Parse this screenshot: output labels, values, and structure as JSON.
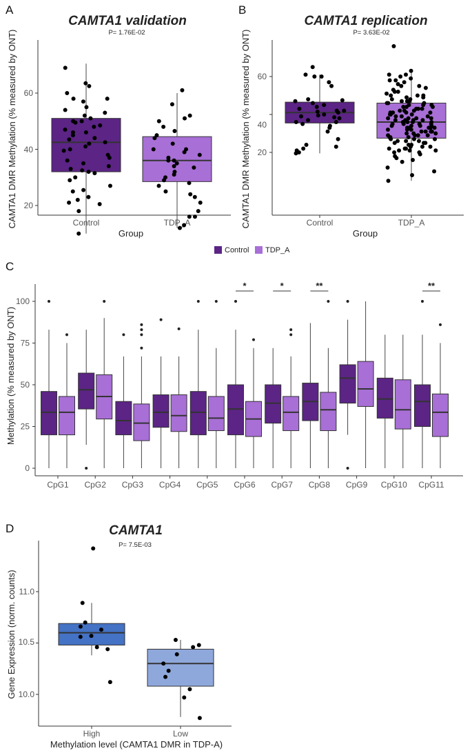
{
  "colors": {
    "control": "#5B2485",
    "tdp": "#A86FD6",
    "title_purple": "#A96BD6",
    "title_blue": "#8FA8DC",
    "high": "#4472C4",
    "low": "#8FA8DC"
  },
  "panels": {
    "A": {
      "letter": "A",
      "title": "CAMTA1 validation",
      "pval": "P= 1.76E-02",
      "ylabel": "CAMTA1 DMR Methylation (% measured by ONT)",
      "xlabel": "Group",
      "ylim": [
        8,
        72
      ],
      "yticks": [
        "20",
        "40",
        "60"
      ],
      "categories": [
        "Control",
        "TDP_A"
      ]
    },
    "B": {
      "letter": "B",
      "title": "CAMTA1 replication",
      "pval": "P= 3.63E-02",
      "ylabel": "CAMTA1 DMR Methylation (% measured by ONT)",
      "xlabel": "Group",
      "ylim": [
        3,
        77
      ],
      "yticks": [
        "20",
        "40",
        "60"
      ],
      "categories": [
        "Control",
        "TDP_A"
      ]
    },
    "C": {
      "letter": "C",
      "ylabel": "Methylation (% measured by ONT)",
      "ylim": [
        -3,
        110
      ],
      "yticks": [
        "0",
        "25",
        "50",
        "75",
        "100"
      ],
      "legend": [
        "Control",
        "TDP_A"
      ],
      "categories": [
        "CpG1",
        "CpG2",
        "CpG3",
        "CpG4",
        "CpG5",
        "CpG6",
        "CpG7",
        "CpG8",
        "CpG9",
        "CpG10",
        "CpG11"
      ],
      "stars": [
        "",
        "",
        "",
        "",
        "",
        "*",
        "*",
        "**",
        "",
        "",
        "**"
      ]
    },
    "D": {
      "letter": "D",
      "title": "CAMTA1",
      "pval": "P= 7.5E-03",
      "ylabel": "Gene Expression (norm. counts)",
      "xlabel": "Methylation level (CAMTA1 DMR in TDP-A)",
      "ylim": [
        9.75,
        11.45
      ],
      "yticks": [
        "10.0",
        "10.5",
        "11.0"
      ],
      "categories": [
        "High",
        "Low"
      ]
    }
  },
  "chart_data": [
    {
      "type": "box",
      "panel": "A",
      "title": "CAMTA1 validation",
      "xlabel": "Group",
      "ylabel": "CAMTA1 DMR Methylation (% measured by ONT)",
      "categories": [
        "Control",
        "TDP_A"
      ],
      "boxes": [
        {
          "min": 10,
          "q1": 32,
          "median": 42.5,
          "q3": 51,
          "max": 70.5
        },
        {
          "min": 12,
          "q1": 28.5,
          "median": 36,
          "q3": 44.5,
          "max": 60
        }
      ],
      "points": [
        [
          63.5,
          62.5,
          60,
          58,
          57,
          55,
          54,
          53,
          51,
          50,
          49.5,
          48.5,
          48,
          47,
          46,
          45,
          44,
          43.5,
          42,
          41,
          40,
          39.5,
          38,
          37,
          36,
          35,
          34,
          33,
          32.5,
          32,
          31.5,
          30,
          29,
          27,
          25.5,
          25,
          23,
          22,
          21,
          20.5,
          18,
          10,
          69,
          58,
          50,
          42.5,
          52,
          46
        ],
        [
          61,
          56,
          52,
          51,
          50,
          48,
          46.5,
          45,
          44,
          42,
          40,
          39,
          38,
          37,
          36,
          35,
          34,
          33.5,
          32,
          31,
          30,
          29,
          28,
          27,
          25,
          24,
          23,
          21,
          18,
          16,
          16,
          13,
          12,
          40,
          36
        ]
      ]
    },
    {
      "type": "box",
      "panel": "B",
      "title": "CAMTA1 replication",
      "xlabel": "Group",
      "ylabel": "CAMTA1 DMR Methylation (% measured by ONT)",
      "categories": [
        "Control",
        "TDP_A"
      ],
      "boxes": [
        {
          "min": 19.5,
          "q1": 35.5,
          "median": 41,
          "q3": 46.5,
          "max": 61
        },
        {
          "min": 5,
          "q1": 27.5,
          "median": 36,
          "q3": 46,
          "max": 63
        }
      ],
      "points": [
        [
          65,
          61,
          60,
          57,
          55,
          48,
          47.5,
          47,
          46,
          45,
          44,
          43,
          42,
          41.5,
          41,
          40,
          39.5,
          39,
          38.5,
          38,
          37,
          36,
          35,
          34,
          33,
          31,
          27,
          24,
          23,
          22,
          21,
          20,
          19.5,
          60,
          36,
          42
        ],
        [
          76,
          63,
          61,
          60,
          59,
          58,
          57,
          56,
          55,
          54,
          53,
          52,
          51,
          50,
          50,
          49,
          48,
          48,
          47,
          46,
          46,
          45,
          45,
          44,
          44,
          43,
          43,
          42,
          42,
          41,
          41,
          40,
          40,
          39,
          39,
          38,
          38,
          38,
          37,
          37,
          36,
          36,
          36,
          35,
          35,
          35,
          34,
          34,
          34,
          33,
          33,
          33,
          32,
          32,
          31,
          31,
          31,
          30,
          30,
          29,
          29,
          28,
          28,
          27,
          27,
          26,
          26,
          25,
          25,
          24,
          24,
          23,
          23,
          22,
          22,
          21,
          21,
          20,
          20,
          19,
          18,
          17,
          16,
          15,
          12,
          10,
          8,
          5,
          61,
          58,
          55,
          52,
          49,
          47,
          45,
          43,
          41,
          39,
          37,
          35,
          33,
          31,
          29,
          27,
          25,
          23,
          21,
          44,
          40,
          36,
          32,
          28,
          50,
          47,
          42,
          38,
          34,
          30,
          26,
          22,
          46,
          41,
          37,
          33,
          29
        ]
      ]
    },
    {
      "type": "grouped-box",
      "panel": "C",
      "ylabel": "Methylation (% measured by ONT)",
      "categories": [
        "CpG1",
        "CpG2",
        "CpG3",
        "CpG4",
        "CpG5",
        "CpG6",
        "CpG7",
        "CpG8",
        "CpG9",
        "CpG10",
        "CpG11"
      ],
      "series": [
        {
          "name": "Control",
          "boxes": [
            {
              "min": 0,
              "q1": 20,
              "median": 33.5,
              "q3": 46,
              "max": 83,
              "outliers": [
                100
              ]
            },
            {
              "min": 14,
              "q1": 35.5,
              "median": 47,
              "q3": 57,
              "max": 83,
              "outliers": [
                0
              ]
            },
            {
              "min": 0,
              "q1": 20,
              "median": 28.5,
              "q3": 40,
              "max": 67,
              "outliers": [
                80
              ]
            },
            {
              "min": 0,
              "q1": 24.5,
              "median": 33.5,
              "q3": 44,
              "max": 67,
              "outliers": [
                89
              ]
            },
            {
              "min": 0,
              "q1": 20,
              "median": 33.5,
              "q3": 46,
              "max": 83,
              "outliers": [
                100
              ]
            },
            {
              "min": 0,
              "q1": 20,
              "median": 35.5,
              "q3": 50,
              "max": 83,
              "outliers": [
                100
              ]
            },
            {
              "min": 0,
              "q1": 27,
              "median": 39,
              "q3": 50,
              "max": 72,
              "outliers": []
            },
            {
              "min": 0,
              "q1": 28.5,
              "median": 40,
              "q3": 51,
              "max": 87,
              "outliers": []
            },
            {
              "min": 20,
              "q1": 39,
              "median": 54,
              "q3": 62,
              "max": 89,
              "outliers": [
                100,
                0
              ]
            },
            {
              "min": 0,
              "q1": 30,
              "median": 41.5,
              "q3": 54,
              "max": 80,
              "outliers": []
            },
            {
              "min": 0,
              "q1": 25,
              "median": 40,
              "q3": 50,
              "max": 80,
              "outliers": [
                100
              ]
            }
          ]
        },
        {
          "name": "TDP_A",
          "boxes": [
            {
              "min": 0,
              "q1": 20,
              "median": 33.5,
              "q3": 43,
              "max": 75,
              "outliers": [
                80
              ]
            },
            {
              "min": 0,
              "q1": 29.5,
              "median": 43,
              "q3": 56,
              "max": 90,
              "outliers": [
                100
              ]
            },
            {
              "min": 0,
              "q1": 16.5,
              "median": 27,
              "q3": 38.5,
              "max": 67,
              "outliers": [
                72,
                80,
                83,
                86
              ]
            },
            {
              "min": 0,
              "q1": 22,
              "median": 31.5,
              "q3": 44,
              "max": 67,
              "outliers": [
                83.5
              ]
            },
            {
              "min": 0,
              "q1": 22.5,
              "median": 30,
              "q3": 43,
              "max": 72,
              "outliers": [
                100
              ]
            },
            {
              "min": 0,
              "q1": 19,
              "median": 29.5,
              "q3": 40,
              "max": 72,
              "outliers": [
                77
              ]
            },
            {
              "min": 0,
              "q1": 22.5,
              "median": 33.5,
              "q3": 43,
              "max": 67,
              "outliers": [
                80,
                83
              ]
            },
            {
              "min": 0,
              "q1": 22.5,
              "median": 35,
              "q3": 45.5,
              "max": 72,
              "outliers": [
                100
              ]
            },
            {
              "min": 0,
              "q1": 37,
              "median": 47.5,
              "q3": 64,
              "max": 100,
              "outliers": []
            },
            {
              "min": 0,
              "q1": 23.5,
              "median": 35,
              "q3": 53,
              "max": 80,
              "outliers": []
            },
            {
              "min": 0,
              "q1": 19,
              "median": 33.5,
              "q3": 44.5,
              "max": 75,
              "outliers": [
                86
              ]
            }
          ]
        }
      ]
    },
    {
      "type": "box",
      "panel": "D",
      "title": "CAMTA1",
      "xlabel": "Methylation level (CAMTA1 DMR in TDP-A)",
      "ylabel": "Gene Expression (norm. counts)",
      "categories": [
        "High",
        "Low"
      ],
      "boxes": [
        {
          "min": 10.38,
          "q1": 10.48,
          "median": 10.6,
          "q3": 10.69,
          "max": 10.89
        },
        {
          "min": 9.78,
          "q1": 10.08,
          "median": 10.3,
          "q3": 10.44,
          "max": 10.53
        }
      ],
      "points": [
        [
          11.42,
          10.89,
          10.7,
          10.66,
          10.63,
          10.57,
          10.56,
          10.46,
          10.44,
          10.12
        ],
        [
          10.53,
          10.48,
          10.46,
          10.39,
          10.3,
          10.23,
          10.17,
          10.05,
          9.97,
          9.77
        ]
      ]
    }
  ]
}
